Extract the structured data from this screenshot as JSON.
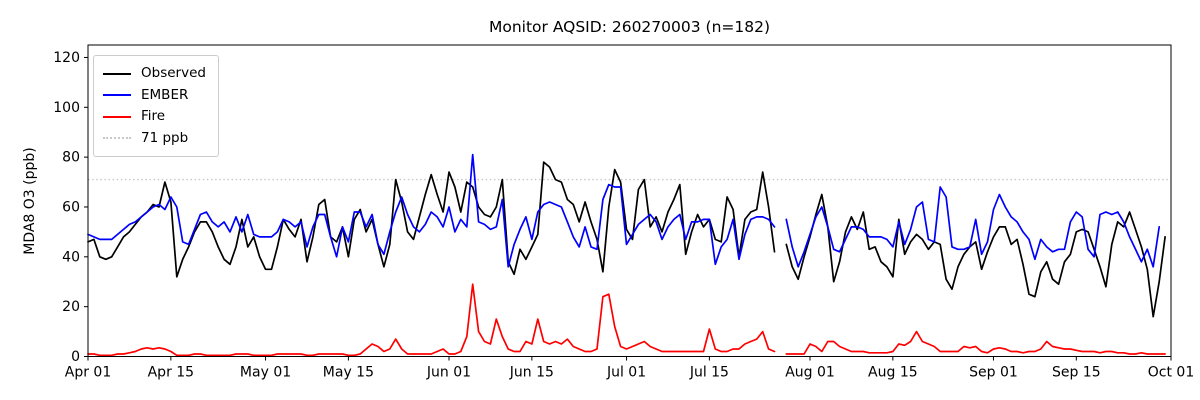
{
  "chart_data": {
    "type": "line",
    "title": "Monitor AQSID: 260270003 (n=182)",
    "xlabel": "",
    "ylabel": "MDA8 O3 (ppb)",
    "ylim": [
      0,
      125
    ],
    "y_ticks": [
      0,
      20,
      40,
      60,
      80,
      100,
      120
    ],
    "x_range_days": 183,
    "grid": false,
    "legend_position": "upper left",
    "x_ticks": [
      {
        "day": 0,
        "label": "Apr 01"
      },
      {
        "day": 14,
        "label": "Apr 15"
      },
      {
        "day": 30,
        "label": "May 01"
      },
      {
        "day": 44,
        "label": "May 15"
      },
      {
        "day": 61,
        "label": "Jun 01"
      },
      {
        "day": 75,
        "label": "Jun 15"
      },
      {
        "day": 91,
        "label": "Jul 01"
      },
      {
        "day": 105,
        "label": "Jul 15"
      },
      {
        "day": 122,
        "label": "Aug 01"
      },
      {
        "day": 136,
        "label": "Aug 15"
      },
      {
        "day": 153,
        "label": "Sep 01"
      },
      {
        "day": 167,
        "label": "Sep 15"
      },
      {
        "day": 183,
        "label": "Oct 01"
      }
    ],
    "reference_line": {
      "value": 71,
      "label": "71 ppb",
      "color": "#c8c8c8",
      "style": "dotted"
    },
    "legend": [
      {
        "label": "Observed",
        "color": "#000000",
        "style": "solid"
      },
      {
        "label": "EMBER",
        "color": "#0000ff",
        "style": "solid"
      },
      {
        "label": "Fire",
        "color": "#ff0000",
        "style": "solid"
      },
      {
        "label": "71 ppb",
        "color": "#c8c8c8",
        "style": "dotted"
      }
    ],
    "series": [
      {
        "name": "Observed",
        "color": "#000000",
        "values": [
          46,
          47,
          40,
          39,
          40,
          44,
          48,
          50,
          53,
          56,
          58,
          61,
          60,
          70,
          62,
          32,
          39,
          44,
          50,
          54,
          54,
          50,
          44,
          39,
          37,
          44,
          55,
          44,
          48,
          40,
          35,
          35,
          44,
          55,
          51,
          48,
          55,
          38,
          48,
          61,
          63,
          48,
          46,
          52,
          40,
          55,
          59,
          50,
          55,
          45,
          36,
          45,
          71,
          62,
          50,
          47,
          56,
          65,
          73,
          65,
          58,
          74,
          68,
          58,
          70,
          68,
          60,
          57,
          56,
          60,
          71,
          38,
          33,
          43,
          39,
          44,
          49,
          78,
          76,
          71,
          70,
          63,
          61,
          54,
          62,
          54,
          47,
          34,
          60,
          75,
          70,
          51,
          47,
          67,
          71,
          52,
          56,
          50,
          58,
          63,
          69,
          41,
          50,
          57,
          52,
          55,
          47,
          46,
          64,
          59,
          40,
          55,
          58,
          59,
          74,
          60,
          42,
          null,
          45,
          36,
          31,
          40,
          48,
          57,
          65,
          52,
          30,
          38,
          50,
          56,
          51,
          58,
          43,
          44,
          38,
          36,
          32,
          55,
          41,
          46,
          49,
          47,
          43,
          46,
          45,
          31,
          27,
          36,
          41,
          44,
          46,
          35,
          42,
          48,
          52,
          52,
          45,
          47,
          37,
          25,
          24,
          34,
          38,
          31,
          29,
          38,
          41,
          50,
          51,
          50,
          43,
          36,
          28,
          45,
          54,
          52,
          58,
          51,
          44,
          35,
          16,
          30,
          48
        ]
      },
      {
        "name": "EMBER",
        "color": "#0000ff",
        "values": [
          49,
          48,
          47,
          47,
          47,
          49,
          51,
          53,
          54,
          56,
          58,
          60,
          61,
          59,
          64,
          60,
          46,
          45,
          51,
          57,
          58,
          54,
          52,
          54,
          50,
          56,
          50,
          57,
          49,
          48,
          48,
          48,
          50,
          55,
          54,
          52,
          54,
          44,
          52,
          57,
          57,
          48,
          40,
          52,
          46,
          58,
          58,
          52,
          57,
          45,
          41,
          50,
          58,
          64,
          57,
          52,
          50,
          53,
          58,
          56,
          52,
          60,
          50,
          55,
          52,
          81,
          54,
          53,
          51,
          52,
          63,
          36,
          45,
          51,
          56,
          47,
          58,
          61,
          62,
          61,
          60,
          54,
          48,
          44,
          52,
          44,
          43,
          63,
          69,
          68,
          68,
          45,
          49,
          53,
          55,
          57,
          54,
          47,
          52,
          55,
          57,
          47,
          54,
          54,
          55,
          55,
          37,
          44,
          47,
          55,
          39,
          49,
          55,
          56,
          56,
          55,
          52,
          null,
          55,
          44,
          36,
          42,
          49,
          56,
          60,
          52,
          43,
          42,
          47,
          52,
          52,
          51,
          48,
          48,
          48,
          47,
          44,
          54,
          45,
          51,
          60,
          62,
          47,
          46,
          68,
          64,
          44,
          43,
          43,
          44,
          55,
          41,
          46,
          59,
          65,
          60,
          56,
          54,
          50,
          47,
          39,
          47,
          44,
          42,
          43,
          43,
          54,
          58,
          56,
          43,
          40,
          57,
          58,
          57,
          58,
          54,
          48,
          43,
          38,
          43,
          36,
          52,
          null
        ]
      },
      {
        "name": "Fire",
        "color": "#ff0000",
        "values": [
          1,
          1,
          0.5,
          0.5,
          0.5,
          1,
          1,
          1.5,
          2,
          3,
          3.5,
          3,
          3.5,
          3,
          2,
          0.5,
          0.5,
          0.5,
          1,
          1,
          0.5,
          0.5,
          0.5,
          0.5,
          0.5,
          1,
          1,
          1,
          0.5,
          0.5,
          0.5,
          0.5,
          1,
          1,
          1,
          1,
          1,
          0.5,
          0.5,
          1,
          1,
          1,
          1,
          1,
          0.5,
          0.5,
          1,
          3,
          5,
          4,
          2,
          3,
          7,
          3,
          1,
          1,
          1,
          1,
          1,
          2,
          3,
          1,
          1,
          2,
          8,
          29,
          10,
          6,
          5,
          15,
          8,
          3,
          2,
          2,
          6,
          5,
          15,
          6,
          5,
          6,
          5,
          7,
          4,
          3,
          2,
          2,
          3,
          24,
          25,
          12,
          4,
          3,
          4,
          5,
          6,
          4,
          3,
          2,
          2,
          2,
          2,
          2,
          2,
          2,
          2,
          11,
          3,
          2,
          2,
          3,
          3,
          5,
          6,
          7,
          10,
          3,
          2,
          null,
          1,
          1,
          1,
          1,
          5,
          4,
          2,
          6,
          6,
          4,
          3,
          2,
          2,
          2,
          1.5,
          1.5,
          1.5,
          1.5,
          2,
          5,
          4.5,
          6,
          10,
          6,
          5,
          4,
          2,
          2,
          2,
          2,
          4,
          3.5,
          4,
          2,
          1.5,
          3,
          3.5,
          3,
          2,
          2,
          1.5,
          2,
          2,
          3,
          6,
          4,
          3.5,
          3,
          3,
          2.5,
          2,
          2,
          2,
          1.5,
          2,
          2,
          1.5,
          1.5,
          1,
          1,
          1.5,
          1,
          1,
          1,
          1
        ]
      }
    ]
  }
}
